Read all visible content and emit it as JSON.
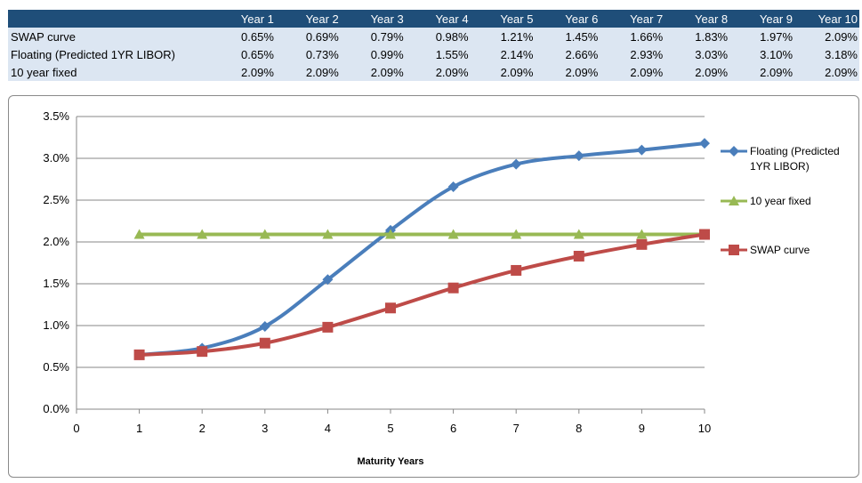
{
  "table": {
    "headers": [
      "",
      "Year 1",
      "Year 2",
      "Year 3",
      "Year 4",
      "Year 5",
      "Year 6",
      "Year 7",
      "Year 8",
      "Year 9",
      "Year 10"
    ],
    "rows": [
      {
        "label": "SWAP curve",
        "values": [
          "0.65%",
          "0.69%",
          "0.79%",
          "0.98%",
          "1.21%",
          "1.45%",
          "1.66%",
          "1.83%",
          "1.97%",
          "2.09%"
        ]
      },
      {
        "label": "Floating (Predicted 1YR LIBOR)",
        "values": [
          "0.65%",
          "0.73%",
          "0.99%",
          "1.55%",
          "2.14%",
          "2.66%",
          "2.93%",
          "3.03%",
          "3.10%",
          "3.18%"
        ]
      },
      {
        "label": "10 year fixed",
        "values": [
          "2.09%",
          "2.09%",
          "2.09%",
          "2.09%",
          "2.09%",
          "2.09%",
          "2.09%",
          "2.09%",
          "2.09%",
          "2.09%"
        ]
      }
    ]
  },
  "chart_data": {
    "type": "line",
    "xlabel": "Maturity Years",
    "ylabel": "",
    "xlim": [
      0,
      10
    ],
    "ylim": [
      0,
      3.5
    ],
    "x_ticks": [
      "0",
      "1",
      "2",
      "3",
      "4",
      "5",
      "6",
      "7",
      "8",
      "9",
      "10"
    ],
    "y_ticks": [
      "0.0%",
      "0.5%",
      "1.0%",
      "1.5%",
      "2.0%",
      "2.5%",
      "3.0%",
      "3.5%"
    ],
    "y_tick_values": [
      0,
      0.5,
      1.0,
      1.5,
      2.0,
      2.5,
      3.0,
      3.5
    ],
    "grid": "horizontal",
    "legend_position": "right",
    "x": [
      1,
      2,
      3,
      4,
      5,
      6,
      7,
      8,
      9,
      10
    ],
    "series": [
      {
        "name": "Floating (Predicted 1YR LIBOR)",
        "legend_lines": [
          "Floating (Predicted",
          "1YR LIBOR)"
        ],
        "color": "#4a7ebb",
        "marker": "diamond",
        "smooth": true,
        "values": [
          0.65,
          0.73,
          0.99,
          1.55,
          2.14,
          2.66,
          2.93,
          3.03,
          3.1,
          3.18
        ]
      },
      {
        "name": "10 year fixed",
        "legend_lines": [
          "10 year fixed"
        ],
        "color": "#98b954",
        "marker": "triangle",
        "smooth": false,
        "values": [
          2.09,
          2.09,
          2.09,
          2.09,
          2.09,
          2.09,
          2.09,
          2.09,
          2.09,
          2.09
        ]
      },
      {
        "name": "SWAP curve",
        "legend_lines": [
          "SWAP curve"
        ],
        "color": "#be4b48",
        "marker": "square",
        "smooth": true,
        "values": [
          0.65,
          0.69,
          0.79,
          0.98,
          1.21,
          1.45,
          1.66,
          1.83,
          1.97,
          2.09
        ]
      }
    ]
  }
}
